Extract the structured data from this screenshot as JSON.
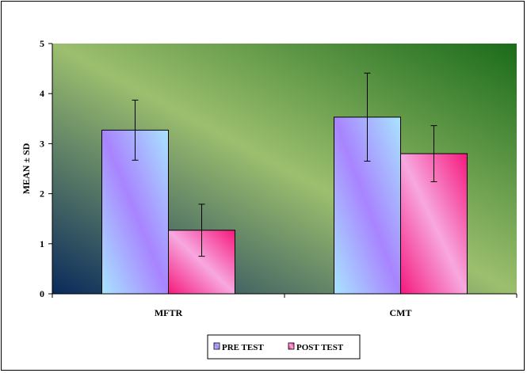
{
  "chart_data": {
    "type": "bar",
    "categories": [
      "MFTR",
      "CMT"
    ],
    "series": [
      {
        "name": "PRE TEST",
        "values": [
          3.27,
          3.53
        ],
        "sd": [
          0.6,
          0.88
        ]
      },
      {
        "name": "POST TEST",
        "values": [
          1.27,
          2.8
        ],
        "sd": [
          0.52,
          0.56
        ]
      }
    ],
    "ylabel": "MEAN ± SD",
    "ylim": [
      0,
      5
    ],
    "yticks": [
      "0",
      "1",
      "2",
      "3",
      "4",
      "5"
    ],
    "grid": false,
    "legend_position": "bottom",
    "colors": {
      "pre_light": "#a8e4ff",
      "pre_dark": "#a884ff",
      "post_light": "#f7a8e0",
      "post_dark": "#f5197c",
      "plot_bg_dark": "#0a2a5c",
      "plot_bg_mid": "#9cbf6e",
      "plot_bg_green": "#1a6b1a"
    }
  }
}
